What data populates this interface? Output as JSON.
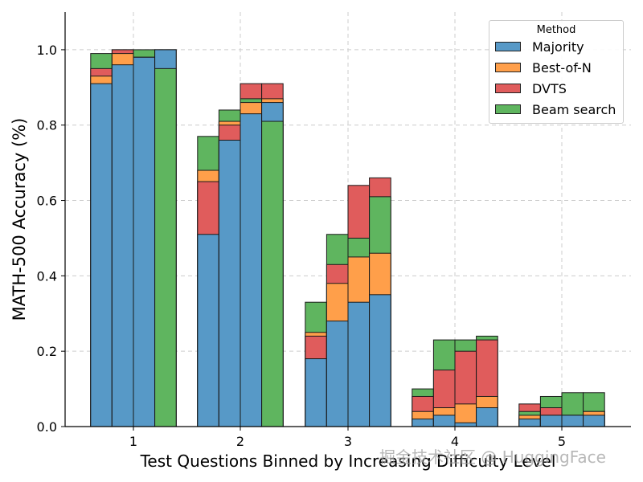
{
  "chart_data": {
    "type": "bar",
    "stacked": true,
    "xlabel": "Test Questions Binned by Increasing Difficulty Level",
    "ylabel": "MATH-500 Accuracy (%)",
    "ylim": [
      0,
      1.1
    ],
    "yticks": [
      "0.0",
      "0.2",
      "0.4",
      "0.6",
      "0.8",
      "1.0"
    ],
    "grid": true,
    "legend_position": "top-right",
    "categories": [
      "1",
      "2",
      "3",
      "4",
      "5"
    ],
    "legend": {
      "title": "Method",
      "entries": [
        {
          "name": "Majority",
          "color": "#5799c7"
        },
        {
          "name": "Best-of-N",
          "color": "#ff9f4a"
        },
        {
          "name": "DVTS",
          "color": "#e05c5c"
        },
        {
          "name": "Beam search",
          "color": "#5fb55f"
        }
      ]
    },
    "groups": [
      {
        "level": "1",
        "bars": [
          {
            "majority": 0.91,
            "best_of_n": 0.93,
            "dvts": 0.95,
            "beam": 0.99
          },
          {
            "majority": 0.96,
            "best_of_n": 0.99,
            "dvts": 1.0,
            "beam": 1.0
          },
          {
            "majority": 0.98,
            "best_of_n": 0.98,
            "dvts": 0.98,
            "beam": 1.0
          },
          {
            "majority": 1.0,
            "best_of_n": 1.0,
            "dvts": 1.0,
            "beam": 0.95
          }
        ]
      },
      {
        "level": "2",
        "bars": [
          {
            "majority": 0.51,
            "best_of_n": 0.68,
            "dvts": 0.65,
            "beam": 0.77
          },
          {
            "majority": 0.76,
            "best_of_n": 0.81,
            "dvts": 0.8,
            "beam": 0.84
          },
          {
            "majority": 0.83,
            "best_of_n": 0.86,
            "dvts": 0.91,
            "beam": 0.87
          },
          {
            "majority": 0.86,
            "best_of_n": 0.87,
            "dvts": 0.91,
            "beam": 0.81
          }
        ]
      },
      {
        "level": "3",
        "bars": [
          {
            "majority": 0.18,
            "best_of_n": 0.25,
            "dvts": 0.24,
            "beam": 0.33
          },
          {
            "majority": 0.28,
            "best_of_n": 0.38,
            "dvts": 0.43,
            "beam": 0.51
          },
          {
            "majority": 0.33,
            "best_of_n": 0.45,
            "dvts": 0.64,
            "beam": 0.5
          },
          {
            "majority": 0.35,
            "best_of_n": 0.46,
            "dvts": 0.66,
            "beam": 0.61
          }
        ]
      },
      {
        "level": "4",
        "bars": [
          {
            "majority": 0.02,
            "best_of_n": 0.04,
            "dvts": 0.08,
            "beam": 0.1
          },
          {
            "majority": 0.03,
            "best_of_n": 0.05,
            "dvts": 0.15,
            "beam": 0.23
          },
          {
            "majority": 0.01,
            "best_of_n": 0.06,
            "dvts": 0.2,
            "beam": 0.23
          },
          {
            "majority": 0.05,
            "best_of_n": 0.08,
            "dvts": 0.23,
            "beam": 0.24
          }
        ]
      },
      {
        "level": "5",
        "bars": [
          {
            "majority": 0.02,
            "best_of_n": 0.03,
            "dvts": 0.06,
            "beam": 0.04
          },
          {
            "majority": 0.03,
            "best_of_n": 0.03,
            "dvts": 0.05,
            "beam": 0.08
          },
          {
            "majority": 0.03,
            "best_of_n": 0.03,
            "dvts": 0.03,
            "beam": 0.09
          },
          {
            "majority": 0.03,
            "best_of_n": 0.04,
            "dvts": 0.04,
            "beam": 0.09
          }
        ]
      }
    ]
  },
  "watermark": "掘金技术社区 @ HuggingFace"
}
